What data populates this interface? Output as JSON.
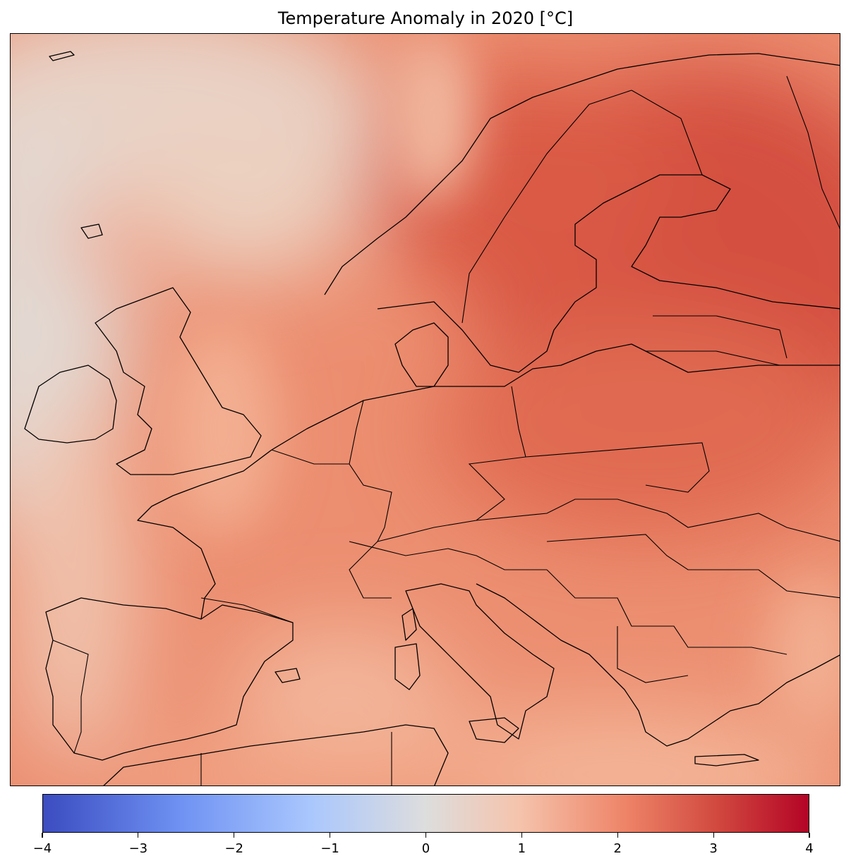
{
  "title": "Temperature Anomaly in 2020 [°C]",
  "map": {
    "region": "Europe",
    "variable": "Temperature Anomaly",
    "year": 2020,
    "unit": "°C",
    "colormap": "coolwarm",
    "anomaly_regions": [
      {
        "area": "North Atlantic (west edge)",
        "approx_anomaly": 0.2
      },
      {
        "area": "Norwegian Sea",
        "approx_anomaly": 0.6
      },
      {
        "area": "Iceland-Faroe waters",
        "approx_anomaly": 1.4
      },
      {
        "area": "British Isles",
        "approx_anomaly": 1.8
      },
      {
        "area": "France",
        "approx_anomaly": 1.9
      },
      {
        "area": "Iberian Peninsula",
        "approx_anomaly": 1.8
      },
      {
        "area": "Western Mediterranean",
        "approx_anomaly": 1.3
      },
      {
        "area": "Central Europe",
        "approx_anomaly": 2.2
      },
      {
        "area": "Scandinavia",
        "approx_anomaly": 2.7
      },
      {
        "area": "Finland and Baltics",
        "approx_anomaly": 3.1
      },
      {
        "area": "Western Russia",
        "approx_anomaly": 3.2
      },
      {
        "area": "Balkans",
        "approx_anomaly": 2.0
      },
      {
        "area": "Eastern Mediterranean",
        "approx_anomaly": 1.5
      }
    ],
    "colors": {
      "cold_extreme": "#3b4cc0",
      "neutral": "#dddddd",
      "warm_extreme": "#b40426",
      "coastline": "#000000"
    }
  },
  "colorbar": {
    "min": -4,
    "max": 4,
    "ticks": [
      {
        "value": -4,
        "label": "−4"
      },
      {
        "value": -3,
        "label": "−3"
      },
      {
        "value": -2,
        "label": "−2"
      },
      {
        "value": -1,
        "label": "−1"
      },
      {
        "value": 0,
        "label": "0"
      },
      {
        "value": 1,
        "label": "1"
      },
      {
        "value": 2,
        "label": "2"
      },
      {
        "value": 3,
        "label": "3"
      },
      {
        "value": 4,
        "label": "4"
      }
    ]
  }
}
